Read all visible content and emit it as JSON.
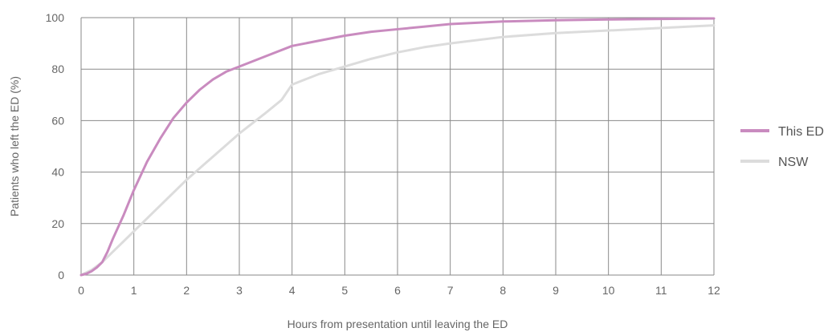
{
  "chart_data": {
    "type": "line",
    "title": "",
    "xlabel": "Hours from presentation until leaving the ED",
    "ylabel": "Patients who left the ED (%)",
    "xlim": [
      0,
      12
    ],
    "ylim": [
      0,
      100
    ],
    "x_ticks": [
      "0",
      "1",
      "2",
      "3",
      "4",
      "5",
      "6",
      "7",
      "8",
      "9",
      "10",
      "11",
      "12"
    ],
    "y_ticks": [
      "0",
      "20",
      "40",
      "60",
      "80",
      "100"
    ],
    "grid": true,
    "legend_position": "right",
    "series": [
      {
        "name": "This ED",
        "color": "#c98bbf",
        "x": [
          0,
          0.1,
          0.2,
          0.3,
          0.4,
          0.5,
          0.6,
          0.8,
          1.0,
          1.25,
          1.5,
          1.75,
          2.0,
          2.25,
          2.5,
          2.75,
          3.0,
          3.5,
          4.0,
          4.5,
          5.0,
          5.5,
          6.0,
          6.5,
          7.0,
          7.5,
          8.0,
          9.0,
          10.0,
          11.0,
          12.0
        ],
        "y": [
          0,
          0.5,
          1.5,
          3,
          5,
          9,
          14,
          23,
          33,
          44,
          53,
          61,
          67,
          72,
          76,
          79,
          81,
          85,
          89,
          91,
          93,
          94.5,
          95.5,
          96.5,
          97.5,
          98,
          98.5,
          99,
          99.3,
          99.5,
          99.7
        ]
      },
      {
        "name": "NSW",
        "color": "#dcdcdc",
        "x": [
          0,
          0.2,
          0.4,
          0.6,
          0.8,
          1.0,
          1.5,
          2.0,
          2.5,
          3.0,
          3.5,
          3.8,
          4.0,
          4.5,
          5.0,
          5.5,
          6.0,
          6.5,
          7.0,
          8.0,
          9.0,
          10.0,
          11.0,
          12.0
        ],
        "y": [
          0,
          2,
          5,
          9,
          13,
          17,
          27,
          37,
          46,
          55,
          63,
          68,
          74,
          78,
          81,
          84,
          86.5,
          88.5,
          90,
          92.5,
          94,
          95,
          96,
          97
        ]
      }
    ]
  }
}
